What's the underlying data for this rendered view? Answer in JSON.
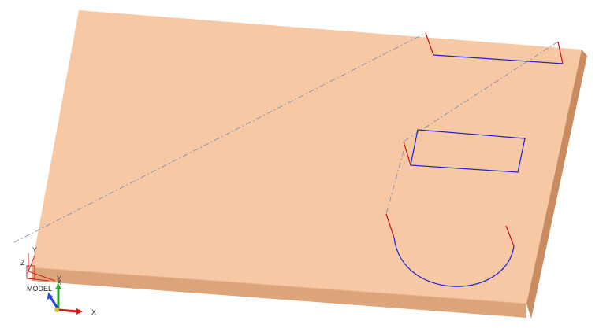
{
  "viewport": {
    "background": "#ffffff",
    "plate_top_color": "#f6c9a4",
    "plate_front_color": "#dba47b",
    "plate_side_color": "#c88c60",
    "toolpath_cut_color": "#1f1fd6",
    "toolpath_plunge_color": "#cc1111",
    "toolpath_rapid_color": "#8a93b5"
  },
  "triad_model": {
    "label": "MODEL",
    "axis_z": "Z",
    "axis_y": "Y",
    "axis_x": "X"
  },
  "triad_world": {
    "axis_y": "Y",
    "axis_x": "X",
    "x_color": "#d31a1a",
    "y_color": "#22aa22",
    "z_color": "#2244dd"
  }
}
